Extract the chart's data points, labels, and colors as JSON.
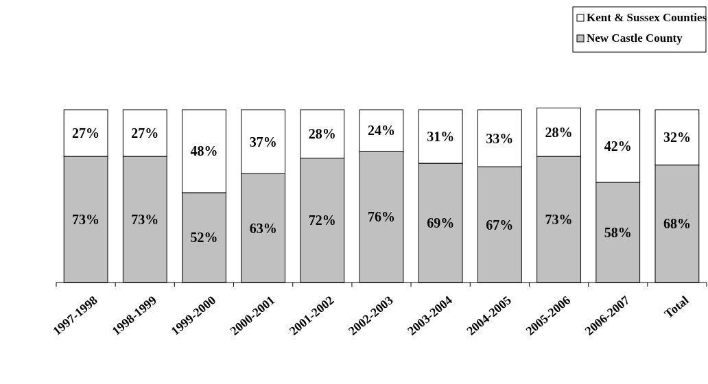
{
  "chart_data": {
    "type": "bar",
    "stacked": true,
    "legend": "top right",
    "categories": [
      "1997-1998",
      "1998-1999",
      "1999-2000",
      "2000-2001",
      "2001-2002",
      "2002-2003",
      "2003-2004",
      "2004-2005",
      "2005-2006",
      "2006-2007",
      "Total"
    ],
    "series": [
      {
        "name": "New Castle County",
        "color": "#c0c0c0",
        "values": [
          73,
          73,
          52,
          63,
          72,
          76,
          69,
          67,
          73,
          58,
          68
        ],
        "value_labels": [
          "73%",
          "73%",
          "52%",
          "63%",
          "72%",
          "76%",
          "69%",
          "67%",
          "73%",
          "58%",
          "68%"
        ]
      },
      {
        "name": "Kent & Sussex Counties",
        "color": "#ffffff",
        "values": [
          27,
          27,
          48,
          37,
          28,
          24,
          31,
          33,
          28,
          42,
          32
        ],
        "value_labels": [
          "27%",
          "27%",
          "48%",
          "37%",
          "28%",
          "24%",
          "31%",
          "33%",
          "28%",
          "42%",
          "32%"
        ]
      }
    ]
  }
}
